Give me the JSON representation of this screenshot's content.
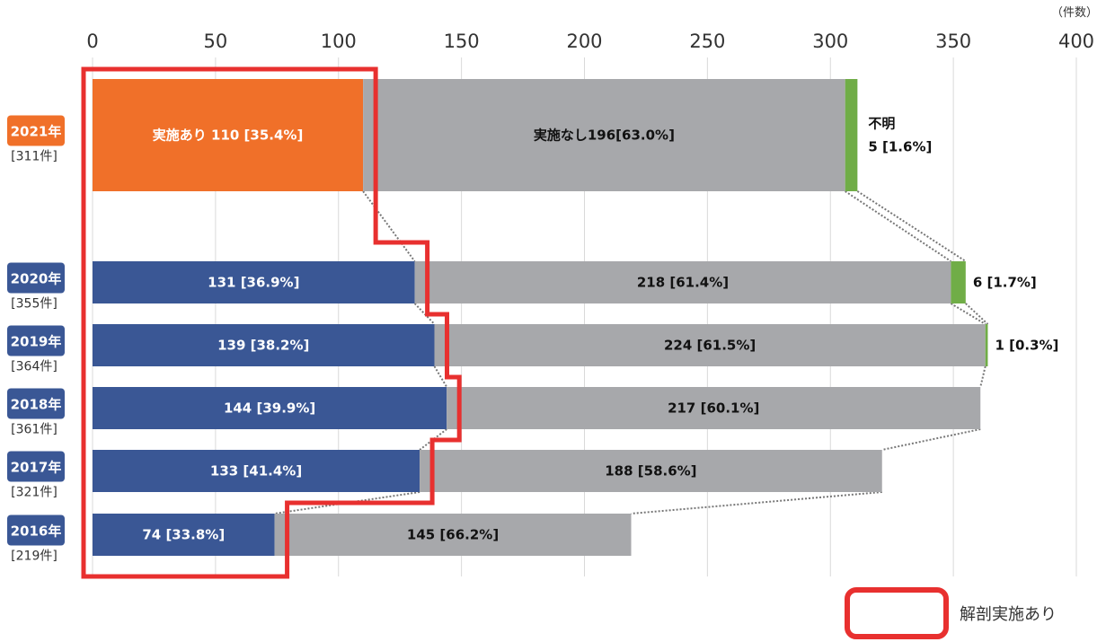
{
  "chart_data": {
    "type": "bar",
    "orientation": "horizontal",
    "stacked": true,
    "unit_label": "（件数）",
    "xlim": [
      0,
      400
    ],
    "x_ticks": [
      "0",
      "50",
      "100",
      "150",
      "200",
      "250",
      "300",
      "350",
      "400"
    ],
    "grid": true,
    "rows": [
      {
        "year": "2021年",
        "total": "[311件]",
        "highlight": true,
        "segments": [
          {
            "category": "実施あり",
            "value": 110,
            "label": "実施あり 110 [35.4%]"
          },
          {
            "category": "実施なし",
            "value": 196,
            "label": "実施なし196[63.0%]"
          },
          {
            "category": "不明",
            "value": 5,
            "label": "不明",
            "label2": "5 [1.6%]"
          }
        ]
      },
      {
        "year": "2020年",
        "total": "[355件]",
        "highlight": false,
        "segments": [
          {
            "category": "実施あり",
            "value": 131,
            "label": "131 [36.9%]"
          },
          {
            "category": "実施なし",
            "value": 218,
            "label": "218 [61.4%]"
          },
          {
            "category": "不明",
            "value": 6,
            "label": "6 [1.7%]"
          }
        ]
      },
      {
        "year": "2019年",
        "total": "[364件]",
        "highlight": false,
        "segments": [
          {
            "category": "実施あり",
            "value": 139,
            "label": "139 [38.2%]"
          },
          {
            "category": "実施なし",
            "value": 224,
            "label": "224 [61.5%]"
          },
          {
            "category": "不明",
            "value": 1,
            "label": "1 [0.3%]"
          }
        ]
      },
      {
        "year": "2018年",
        "total": "[361件]",
        "highlight": false,
        "segments": [
          {
            "category": "実施あり",
            "value": 144,
            "label": "144 [39.9%]"
          },
          {
            "category": "実施なし",
            "value": 217,
            "label": "217 [60.1%]"
          }
        ]
      },
      {
        "year": "2017年",
        "total": "[321件]",
        "highlight": false,
        "segments": [
          {
            "category": "実施あり",
            "value": 133,
            "label": "133 [41.4%]"
          },
          {
            "category": "実施なし",
            "value": 188,
            "label": "188 [58.6%]"
          }
        ]
      },
      {
        "year": "2016年",
        "total": "[219件]",
        "highlight": false,
        "segments": [
          {
            "category": "実施あり",
            "value": 74,
            "label": "74 [33.8%]"
          },
          {
            "category": "実施なし",
            "value": 145,
            "label": "145 [66.2%]"
          }
        ]
      }
    ],
    "legend": {
      "label": "解剖実施あり",
      "placement": "bottom-right"
    },
    "colors": {
      "highlight_bar": "#f07029",
      "highlight_badge": "#f07029",
      "performed_bar": "#3a5795",
      "badge": "#3a5795",
      "not_performed_bar": "#a7a8ab",
      "unknown_bar": "#70ad47",
      "outline": "#e8302f",
      "connector": "#777777",
      "grid": "#d9d9d9"
    }
  }
}
